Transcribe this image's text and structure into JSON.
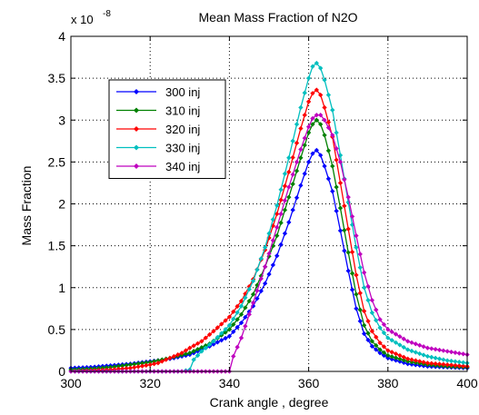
{
  "chart_data": {
    "type": "line",
    "title": "Mean Mass Fraction of N2O",
    "xlabel": "Crank angle , degree",
    "ylabel": "Mass Fraction",
    "xlim": [
      300,
      400
    ],
    "ylim": [
      0,
      4
    ],
    "x_ticks": [
      "300",
      "320",
      "340",
      "360",
      "380",
      "400"
    ],
    "y_ticks": [
      "0",
      "0.5",
      "1",
      "1.5",
      "2",
      "2.5",
      "3",
      "3.5",
      "4"
    ],
    "y_multiplier": {
      "base": "x 10",
      "exponent": "-8"
    },
    "grid": true,
    "legend_position": "upper-left",
    "series": [
      {
        "name": "300 inj",
        "color": "#0000ff",
        "marker": "diamond",
        "points": [
          [
            300,
            0.04
          ],
          [
            305,
            0.05
          ],
          [
            310,
            0.07
          ],
          [
            315,
            0.09
          ],
          [
            320,
            0.12
          ],
          [
            325,
            0.15
          ],
          [
            330,
            0.2
          ],
          [
            335,
            0.3
          ],
          [
            340,
            0.42
          ],
          [
            343,
            0.58
          ],
          [
            346,
            0.78
          ],
          [
            349,
            1.05
          ],
          [
            352,
            1.38
          ],
          [
            355,
            1.78
          ],
          [
            358,
            2.22
          ],
          [
            360,
            2.5
          ],
          [
            361,
            2.6
          ],
          [
            362,
            2.64
          ],
          [
            363,
            2.58
          ],
          [
            364,
            2.45
          ],
          [
            366,
            2.15
          ],
          [
            368,
            1.68
          ],
          [
            370,
            1.2
          ],
          [
            372,
            0.75
          ],
          [
            374,
            0.45
          ],
          [
            376,
            0.3
          ],
          [
            378,
            0.22
          ],
          [
            380,
            0.16
          ],
          [
            385,
            0.09
          ],
          [
            390,
            0.06
          ],
          [
            395,
            0.05
          ],
          [
            400,
            0.04
          ]
        ]
      },
      {
        "name": "310 inj",
        "color": "#008000",
        "marker": "diamond",
        "points": [
          [
            300,
            0.02
          ],
          [
            305,
            0.03
          ],
          [
            310,
            0.05
          ],
          [
            315,
            0.08
          ],
          [
            320,
            0.11
          ],
          [
            325,
            0.16
          ],
          [
            330,
            0.22
          ],
          [
            335,
            0.33
          ],
          [
            340,
            0.5
          ],
          [
            343,
            0.68
          ],
          [
            346,
            0.92
          ],
          [
            349,
            1.25
          ],
          [
            352,
            1.62
          ],
          [
            355,
            2.08
          ],
          [
            358,
            2.55
          ],
          [
            360,
            2.85
          ],
          [
            361,
            2.95
          ],
          [
            362,
            3.0
          ],
          [
            363,
            2.95
          ],
          [
            364,
            2.82
          ],
          [
            366,
            2.45
          ],
          [
            368,
            1.95
          ],
          [
            370,
            1.42
          ],
          [
            372,
            0.92
          ],
          [
            374,
            0.55
          ],
          [
            376,
            0.36
          ],
          [
            378,
            0.26
          ],
          [
            380,
            0.19
          ],
          [
            385,
            0.12
          ],
          [
            390,
            0.08
          ],
          [
            395,
            0.06
          ],
          [
            400,
            0.05
          ]
        ]
      },
      {
        "name": "320 inj",
        "color": "#ff0000",
        "marker": "diamond",
        "points": [
          [
            300,
            0.0
          ],
          [
            305,
            0.01
          ],
          [
            310,
            0.02
          ],
          [
            315,
            0.04
          ],
          [
            320,
            0.08
          ],
          [
            322,
            0.1
          ],
          [
            325,
            0.16
          ],
          [
            328,
            0.22
          ],
          [
            330,
            0.28
          ],
          [
            333,
            0.36
          ],
          [
            336,
            0.48
          ],
          [
            340,
            0.65
          ],
          [
            343,
            0.84
          ],
          [
            346,
            1.1
          ],
          [
            349,
            1.45
          ],
          [
            352,
            1.88
          ],
          [
            355,
            2.38
          ],
          [
            358,
            2.9
          ],
          [
            360,
            3.22
          ],
          [
            361,
            3.32
          ],
          [
            362,
            3.36
          ],
          [
            363,
            3.3
          ],
          [
            364,
            3.15
          ],
          [
            366,
            2.8
          ],
          [
            368,
            2.25
          ],
          [
            370,
            1.7
          ],
          [
            372,
            1.15
          ],
          [
            374,
            0.72
          ],
          [
            376,
            0.48
          ],
          [
            378,
            0.34
          ],
          [
            380,
            0.25
          ],
          [
            385,
            0.15
          ],
          [
            390,
            0.1
          ],
          [
            395,
            0.08
          ],
          [
            400,
            0.06
          ]
        ]
      },
      {
        "name": "330 inj",
        "color": "#00bfbf",
        "marker": "diamond",
        "points": [
          [
            300,
            0.0
          ],
          [
            310,
            0.0
          ],
          [
            320,
            0.0
          ],
          [
            328,
            0.0
          ],
          [
            330,
            0.02
          ],
          [
            331,
            0.14
          ],
          [
            333,
            0.24
          ],
          [
            336,
            0.36
          ],
          [
            340,
            0.55
          ],
          [
            343,
            0.78
          ],
          [
            346,
            1.08
          ],
          [
            349,
            1.48
          ],
          [
            352,
            1.98
          ],
          [
            355,
            2.55
          ],
          [
            358,
            3.15
          ],
          [
            360,
            3.5
          ],
          [
            361,
            3.64
          ],
          [
            362,
            3.68
          ],
          [
            363,
            3.62
          ],
          [
            364,
            3.48
          ],
          [
            366,
            3.12
          ],
          [
            368,
            2.58
          ],
          [
            370,
            2.02
          ],
          [
            372,
            1.48
          ],
          [
            374,
            1.0
          ],
          [
            376,
            0.7
          ],
          [
            378,
            0.52
          ],
          [
            380,
            0.4
          ],
          [
            385,
            0.26
          ],
          [
            390,
            0.18
          ],
          [
            395,
            0.13
          ],
          [
            400,
            0.1
          ]
        ]
      },
      {
        "name": "340 inj",
        "color": "#bf00bf",
        "marker": "diamond",
        "points": [
          [
            300,
            0.0
          ],
          [
            310,
            0.0
          ],
          [
            320,
            0.0
          ],
          [
            330,
            0.0
          ],
          [
            338,
            0.0
          ],
          [
            340,
            0.0
          ],
          [
            341,
            0.18
          ],
          [
            343,
            0.4
          ],
          [
            346,
            0.82
          ],
          [
            349,
            1.25
          ],
          [
            352,
            1.72
          ],
          [
            355,
            2.2
          ],
          [
            358,
            2.65
          ],
          [
            360,
            2.92
          ],
          [
            361,
            3.02
          ],
          [
            362,
            3.06
          ],
          [
            363,
            3.06
          ],
          [
            364,
            3.0
          ],
          [
            366,
            2.82
          ],
          [
            368,
            2.5
          ],
          [
            370,
            2.08
          ],
          [
            372,
            1.62
          ],
          [
            374,
            1.18
          ],
          [
            376,
            0.85
          ],
          [
            378,
            0.62
          ],
          [
            380,
            0.5
          ],
          [
            385,
            0.36
          ],
          [
            390,
            0.28
          ],
          [
            395,
            0.24
          ],
          [
            400,
            0.2
          ]
        ]
      }
    ]
  }
}
